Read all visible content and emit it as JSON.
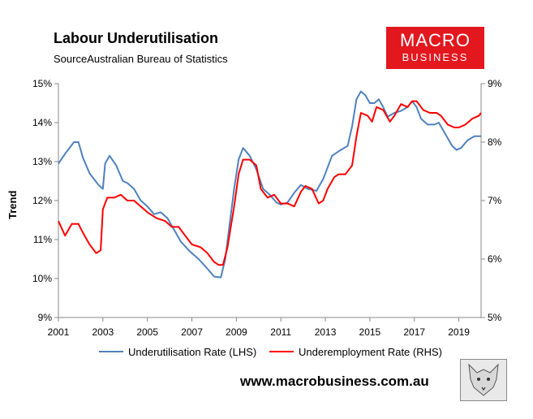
{
  "header": {
    "title": "Labour Underutilisation",
    "source": "SourceAustralian Bureau of Statistics"
  },
  "logo": {
    "line1": "MACRO",
    "line2": "BUSINESS",
    "color": "#e3171e"
  },
  "footer": {
    "url": "www.macrobusiness.com.au",
    "mascot_icon": "fox-sketch-icon"
  },
  "chart_data": {
    "type": "line",
    "title": "Labour Underutilisation",
    "ylabel": "Trend",
    "xlim": [
      2001,
      2020
    ],
    "ylim_left": [
      9,
      15
    ],
    "ylim_right": [
      5,
      9
    ],
    "x_ticks": [
      "2001",
      "2003",
      "2005",
      "2007",
      "2009",
      "2011",
      "2013",
      "2015",
      "2017",
      "2019"
    ],
    "y_ticks_left": [
      "9%",
      "10%",
      "11%",
      "12%",
      "13%",
      "14%",
      "15%"
    ],
    "y_ticks_right": [
      "5%",
      "6%",
      "7%",
      "8%",
      "9%"
    ],
    "grid": false,
    "legend_position": "bottom",
    "series": [
      {
        "name": "Underutilisation Rate (LHS)",
        "axis": "left",
        "color": "#4f81bd",
        "x": [
          2001.0,
          2001.3,
          2001.7,
          2001.9,
          2002.1,
          2002.4,
          2002.8,
          2003.0,
          2003.1,
          2003.3,
          2003.6,
          2003.9,
          2004.1,
          2004.4,
          2004.7,
          2005.0,
          2005.3,
          2005.6,
          2005.9,
          2006.2,
          2006.5,
          2006.9,
          2007.3,
          2007.7,
          2008.0,
          2008.3,
          2008.5,
          2008.7,
          2008.9,
          2009.1,
          2009.3,
          2009.6,
          2009.9,
          2010.2,
          2010.5,
          2010.8,
          2011.0,
          2011.3,
          2011.6,
          2011.9,
          2012.2,
          2012.6,
          2012.9,
          2013.1,
          2013.3,
          2013.7,
          2014.0,
          2014.2,
          2014.4,
          2014.6,
          2014.8,
          2015.0,
          2015.2,
          2015.4,
          2015.6,
          2015.8,
          2016.1,
          2016.4,
          2016.7,
          2016.9,
          2017.1,
          2017.3,
          2017.6,
          2017.9,
          2018.1,
          2018.4,
          2018.7,
          2018.9,
          2019.1,
          2019.4,
          2019.7,
          2020.0
        ],
        "values": [
          12.95,
          13.2,
          13.5,
          13.5,
          13.1,
          12.7,
          12.4,
          12.3,
          12.95,
          13.15,
          12.9,
          12.5,
          12.45,
          12.3,
          12.0,
          11.85,
          11.65,
          11.7,
          11.55,
          11.25,
          10.95,
          10.7,
          10.5,
          10.25,
          10.05,
          10.03,
          10.5,
          11.4,
          12.3,
          13.05,
          13.35,
          13.15,
          12.8,
          12.3,
          12.15,
          11.95,
          11.9,
          11.95,
          12.2,
          12.4,
          12.3,
          12.25,
          12.55,
          12.85,
          13.15,
          13.3,
          13.4,
          13.9,
          14.6,
          14.8,
          14.7,
          14.5,
          14.5,
          14.6,
          14.4,
          14.15,
          14.25,
          14.3,
          14.4,
          14.55,
          14.4,
          14.1,
          13.95,
          13.95,
          14.0,
          13.7,
          13.4,
          13.3,
          13.35,
          13.55,
          13.65,
          13.65
        ]
      },
      {
        "name": "Underemployment Rate (RHS)",
        "axis": "right",
        "color": "#ff0000",
        "x": [
          2001.0,
          2001.3,
          2001.6,
          2001.9,
          2002.1,
          2002.4,
          2002.7,
          2002.9,
          2003.0,
          2003.2,
          2003.5,
          2003.8,
          2004.1,
          2004.4,
          2004.7,
          2005.0,
          2005.4,
          2005.8,
          2006.1,
          2006.4,
          2006.7,
          2007.0,
          2007.4,
          2007.7,
          2008.0,
          2008.2,
          2008.4,
          2008.6,
          2008.9,
          2009.1,
          2009.3,
          2009.6,
          2009.9,
          2010.1,
          2010.4,
          2010.7,
          2011.0,
          2011.3,
          2011.6,
          2011.9,
          2012.1,
          2012.4,
          2012.7,
          2012.9,
          2013.1,
          2013.4,
          2013.6,
          2013.9,
          2014.2,
          2014.4,
          2014.6,
          2014.9,
          2015.1,
          2015.3,
          2015.6,
          2015.9,
          2016.1,
          2016.4,
          2016.7,
          2016.9,
          2017.1,
          2017.4,
          2017.7,
          2018.0,
          2018.2,
          2018.5,
          2018.8,
          2019.0,
          2019.3,
          2019.6,
          2019.9,
          2020.0
        ],
        "values": [
          6.65,
          6.4,
          6.6,
          6.6,
          6.45,
          6.25,
          6.1,
          6.15,
          6.85,
          7.05,
          7.05,
          7.1,
          7.0,
          7.0,
          6.9,
          6.8,
          6.7,
          6.65,
          6.55,
          6.55,
          6.4,
          6.25,
          6.2,
          6.1,
          5.95,
          5.9,
          5.9,
          6.2,
          6.9,
          7.45,
          7.7,
          7.7,
          7.6,
          7.2,
          7.05,
          7.1,
          6.95,
          6.95,
          6.9,
          7.15,
          7.25,
          7.2,
          6.95,
          7.0,
          7.2,
          7.4,
          7.45,
          7.45,
          7.6,
          8.1,
          8.5,
          8.45,
          8.35,
          8.6,
          8.55,
          8.35,
          8.45,
          8.65,
          8.6,
          8.7,
          8.7,
          8.55,
          8.5,
          8.5,
          8.45,
          8.3,
          8.25,
          8.25,
          8.3,
          8.4,
          8.45,
          8.5
        ]
      }
    ]
  }
}
